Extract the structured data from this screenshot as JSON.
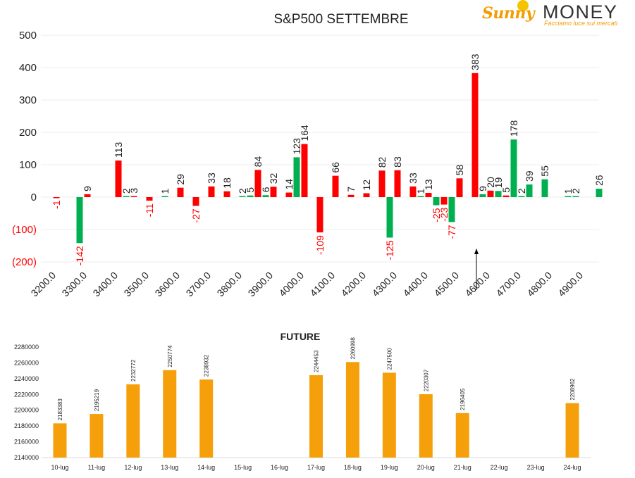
{
  "logo": {
    "brand_sunny": "Sunny",
    "brand_money": "MONEY",
    "tagline": "Facciamo luce sui mercati"
  },
  "colors": {
    "positive": "#00b050",
    "negative": "#ff0000",
    "future": "#f5a00a",
    "grid": "#ececec",
    "text": "#222222"
  },
  "chart_data": [
    {
      "type": "bar",
      "title": "S&P500 SETTEMBRE",
      "xlabel": "",
      "ylabel": "",
      "ylim": [
        -200,
        500
      ],
      "y_tick_labels": [
        "(200)",
        "(100)",
        "0",
        "100",
        "200",
        "300",
        "400",
        "500"
      ],
      "categories": [
        "3200.0",
        "3300.0",
        "3400.0",
        "3500.0",
        "3600.0",
        "3700.0",
        "3800.0",
        "3900.0",
        "4000.0",
        "4100.0",
        "4200.0",
        "4300.0",
        "4400.0",
        "4500.0",
        "4600.0",
        "4700.0",
        "4800.0",
        "4900.0"
      ],
      "grid": true,
      "annotation": "arrow pointing up at 4600.0",
      "bars": [
        {
          "x": 3200,
          "value": -1,
          "color": "red"
        },
        {
          "x": 3275,
          "value": -142,
          "color": "green"
        },
        {
          "x": 3300,
          "value": 9,
          "color": "red"
        },
        {
          "x": 3400,
          "value": 113,
          "color": "red"
        },
        {
          "x": 3425,
          "value": 2,
          "color": "green"
        },
        {
          "x": 3450,
          "value": 3,
          "color": "red"
        },
        {
          "x": 3500,
          "value": -11,
          "color": "red"
        },
        {
          "x": 3550,
          "value": 1,
          "color": "green"
        },
        {
          "x": 3600,
          "value": 29,
          "color": "red"
        },
        {
          "x": 3650,
          "value": -27,
          "color": "red"
        },
        {
          "x": 3700,
          "value": 33,
          "color": "red"
        },
        {
          "x": 3750,
          "value": 18,
          "color": "red"
        },
        {
          "x": 3800,
          "value": 2,
          "color": "green"
        },
        {
          "x": 3825,
          "value": 5,
          "color": "green"
        },
        {
          "x": 3850,
          "value": 84,
          "color": "red"
        },
        {
          "x": 3875,
          "value": 6,
          "color": "green"
        },
        {
          "x": 3900,
          "value": 32,
          "color": "red"
        },
        {
          "x": 3950,
          "value": 14,
          "color": "red"
        },
        {
          "x": 3975,
          "value": 123,
          "color": "green"
        },
        {
          "x": 4000,
          "value": 164,
          "color": "red"
        },
        {
          "x": 4050,
          "value": -109,
          "color": "red"
        },
        {
          "x": 4100,
          "value": 66,
          "color": "red"
        },
        {
          "x": 4150,
          "value": 7,
          "color": "red"
        },
        {
          "x": 4200,
          "value": 12,
          "color": "red"
        },
        {
          "x": 4250,
          "value": 82,
          "color": "red"
        },
        {
          "x": 4275,
          "value": -125,
          "color": "green"
        },
        {
          "x": 4300,
          "value": 83,
          "color": "red"
        },
        {
          "x": 4350,
          "value": 33,
          "color": "red"
        },
        {
          "x": 4375,
          "value": 1,
          "color": "green"
        },
        {
          "x": 4400,
          "value": 13,
          "color": "red"
        },
        {
          "x": 4425,
          "value": -25,
          "color": "green"
        },
        {
          "x": 4450,
          "value": -23,
          "color": "red"
        },
        {
          "x": 4475,
          "value": -77,
          "color": "green"
        },
        {
          "x": 4500,
          "value": 58,
          "color": "red"
        },
        {
          "x": 4550,
          "value": 383,
          "color": "red"
        },
        {
          "x": 4575,
          "value": 9,
          "color": "green"
        },
        {
          "x": 4600,
          "value": 20,
          "color": "red"
        },
        {
          "x": 4625,
          "value": 19,
          "color": "green"
        },
        {
          "x": 4650,
          "value": 5,
          "color": "red"
        },
        {
          "x": 4675,
          "value": 178,
          "color": "green"
        },
        {
          "x": 4700,
          "value": 2,
          "color": "green"
        },
        {
          "x": 4725,
          "value": 39,
          "color": "green"
        },
        {
          "x": 4775,
          "value": 55,
          "color": "green"
        },
        {
          "x": 4850,
          "value": 1,
          "color": "green"
        },
        {
          "x": 4875,
          "value": 2,
          "color": "green"
        },
        {
          "x": 4950,
          "value": 26,
          "color": "green"
        }
      ]
    },
    {
      "type": "bar",
      "title": "FUTURE",
      "xlabel": "",
      "ylabel": "",
      "ylim": [
        2140000,
        2280000
      ],
      "y_tick_labels": [
        "2140000",
        "2160000",
        "2180000",
        "2200000",
        "2220000",
        "2240000",
        "2260000",
        "2280000"
      ],
      "categories": [
        "10-lug",
        "11-lug",
        "12-lug",
        "13-lug",
        "14-lug",
        "15-lug",
        "16-lug",
        "17-lug",
        "18-lug",
        "19-lug",
        "20-lug",
        "21-lug",
        "22-lug",
        "23-lug",
        "24-lug"
      ],
      "values": [
        2183383,
        2195219,
        2232772,
        2250774,
        2238932,
        null,
        null,
        2244453,
        2260998,
        2247500,
        2220307,
        2196405,
        null,
        null,
        2208962
      ],
      "grid": false
    }
  ]
}
